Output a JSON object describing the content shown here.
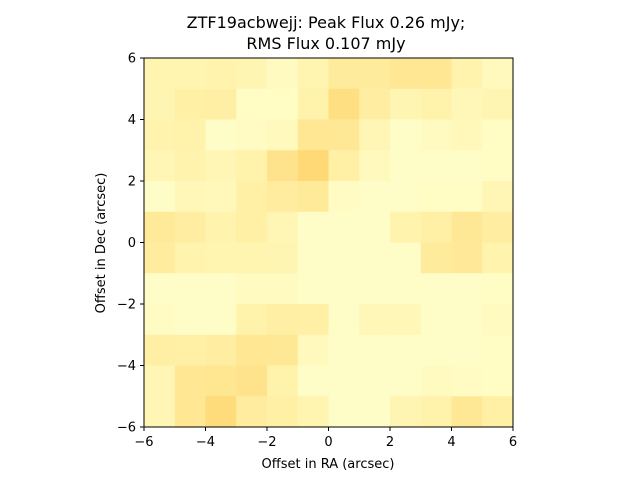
{
  "chart_data": {
    "type": "heatmap",
    "title_lines": [
      "ZTF19acbwejj: Peak Flux 0.26 mJy;",
      "RMS Flux 0.107 mJy"
    ],
    "xlabel": "Offset in RA (arcsec)",
    "ylabel": "Offset in Dec (arcsec)",
    "xlim": [
      -6,
      6
    ],
    "ylim": [
      -6,
      6
    ],
    "xticks": [
      -6,
      -4,
      -2,
      0,
      2,
      4,
      6
    ],
    "yticks": [
      -6,
      -4,
      -2,
      0,
      2,
      4,
      6
    ],
    "xtick_labels": [
      "−6",
      "−4",
      "−2",
      "0",
      "2",
      "4",
      "6"
    ],
    "ytick_labels": [
      "−6",
      "−4",
      "−2",
      "0",
      "2",
      "4",
      "6"
    ],
    "grid": false,
    "colormap": "YlOrRd",
    "color_range": [
      "#ffffcc",
      "#feb24c"
    ],
    "pixel_size_arcsec": 1,
    "z_rows_top_to_bottom": [
      [
        0.22,
        0.22,
        0.24,
        0.2,
        0.1,
        0.22,
        0.38,
        0.38,
        0.46,
        0.46,
        0.24,
        0.12
      ],
      [
        0.2,
        0.3,
        0.32,
        0.06,
        0.06,
        0.26,
        0.6,
        0.34,
        0.2,
        0.26,
        0.16,
        0.2
      ],
      [
        0.24,
        0.26,
        0.04,
        0.08,
        0.12,
        0.46,
        0.44,
        0.18,
        0.04,
        0.1,
        0.14,
        0.06
      ],
      [
        0.18,
        0.24,
        0.18,
        0.26,
        0.52,
        0.7,
        0.3,
        0.12,
        0.04,
        0.04,
        0.04,
        0.06
      ],
      [
        0.04,
        0.16,
        0.14,
        0.3,
        0.36,
        0.4,
        0.08,
        0.04,
        0.04,
        0.06,
        0.06,
        0.18
      ],
      [
        0.4,
        0.34,
        0.24,
        0.3,
        0.18,
        0.04,
        0.04,
        0.04,
        0.24,
        0.3,
        0.44,
        0.34
      ],
      [
        0.36,
        0.24,
        0.22,
        0.22,
        0.2,
        0.04,
        0.04,
        0.04,
        0.04,
        0.38,
        0.42,
        0.24
      ],
      [
        0.04,
        0.04,
        0.04,
        0.1,
        0.1,
        0.04,
        0.04,
        0.04,
        0.04,
        0.04,
        0.04,
        0.06
      ],
      [
        0.08,
        0.04,
        0.04,
        0.26,
        0.32,
        0.3,
        0.04,
        0.16,
        0.16,
        0.04,
        0.04,
        0.1
      ],
      [
        0.32,
        0.3,
        0.34,
        0.46,
        0.44,
        0.12,
        0.04,
        0.04,
        0.04,
        0.04,
        0.04,
        0.06
      ],
      [
        0.18,
        0.46,
        0.48,
        0.52,
        0.26,
        0.04,
        0.04,
        0.04,
        0.04,
        0.1,
        0.08,
        0.06
      ],
      [
        0.18,
        0.46,
        0.66,
        0.36,
        0.3,
        0.22,
        0.04,
        0.04,
        0.2,
        0.26,
        0.44,
        0.3
      ]
    ]
  }
}
